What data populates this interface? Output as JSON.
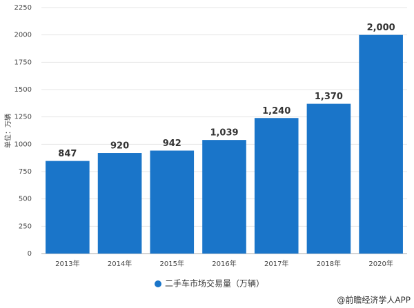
{
  "chart_data": {
    "type": "bar",
    "y_label": "单位：万辆",
    "categories": [
      "2013年",
      "2014年",
      "2015年",
      "2016年",
      "2017年",
      "2018年",
      "2020年"
    ],
    "series": [
      {
        "name": "二手车市场交易量（万辆）",
        "color": "#1a75c9",
        "values": [
          847,
          920,
          942,
          1039,
          1240,
          1370,
          2000
        ],
        "value_labels": [
          "847",
          "920",
          "942",
          "1,039",
          "1,240",
          "1,370",
          "2,000"
        ]
      }
    ],
    "ylim": [
      0,
      2250
    ],
    "yticks": [
      0,
      250,
      500,
      750,
      1000,
      1250,
      1500,
      1750,
      2000,
      2250
    ],
    "grid": true,
    "legend": "bottom",
    "credit": "@前瞻经济学人APP"
  }
}
